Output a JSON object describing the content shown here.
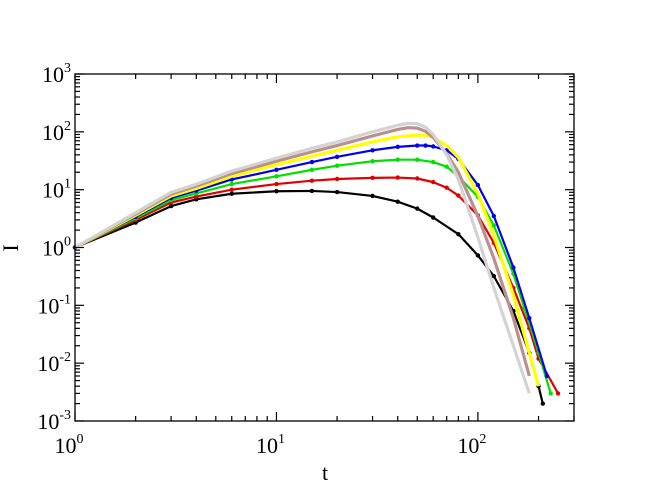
{
  "chart_data": {
    "type": "line",
    "title": "",
    "xlabel": "t",
    "ylabel": "I",
    "x_scale": "log",
    "y_scale": "log",
    "xlim": [
      1,
      300
    ],
    "ylim": [
      0.001,
      1000
    ],
    "grid": false,
    "legend": "none",
    "x_ticks": [
      {
        "value": 1,
        "base": "10",
        "exp": "0"
      },
      {
        "value": 10,
        "base": "10",
        "exp": "1"
      },
      {
        "value": 100,
        "base": "10",
        "exp": "2"
      }
    ],
    "y_ticks": [
      {
        "value": 0.001,
        "base": "10",
        "exp": "-3"
      },
      {
        "value": 0.01,
        "base": "10",
        "exp": "-2"
      },
      {
        "value": 0.1,
        "base": "10",
        "exp": "-1"
      },
      {
        "value": 1,
        "base": "10",
        "exp": "0"
      },
      {
        "value": 10,
        "base": "10",
        "exp": "1"
      },
      {
        "value": 100,
        "base": "10",
        "exp": "2"
      },
      {
        "value": 1000,
        "base": "10",
        "exp": "3"
      }
    ],
    "series": [
      {
        "color": "#000000",
        "marker": "dot",
        "x": [
          1,
          2,
          3,
          4,
          6,
          10,
          15,
          20,
          30,
          40,
          50,
          60,
          80,
          100,
          120,
          150,
          180,
          200,
          210
        ],
        "y": [
          1,
          2.7,
          5.2,
          6.8,
          8.5,
          9.4,
          9.5,
          9.1,
          7.8,
          6.2,
          4.7,
          3.3,
          1.7,
          0.73,
          0.32,
          0.08,
          0.015,
          0.004,
          0.002
        ]
      },
      {
        "color": "#e00000",
        "marker": "dot",
        "x": [
          1,
          2,
          3,
          4,
          6,
          10,
          15,
          20,
          30,
          40,
          50,
          60,
          70,
          80,
          100,
          120,
          150,
          180,
          200,
          250
        ],
        "y": [
          1,
          3.0,
          6.0,
          7.6,
          10,
          12.5,
          14.3,
          15.3,
          16,
          16.2,
          15.6,
          13.5,
          10.8,
          7.9,
          3.6,
          1.2,
          0.2,
          0.04,
          0.012,
          0.003
        ]
      },
      {
        "color": "#00e000",
        "marker": "dot",
        "x": [
          1,
          2,
          3,
          4,
          6,
          10,
          15,
          20,
          30,
          40,
          50,
          60,
          70,
          80,
          100,
          120,
          150,
          170,
          200,
          230
        ],
        "y": [
          1,
          3.2,
          6.6,
          8.6,
          12.5,
          17,
          22,
          26,
          31,
          33,
          33,
          30,
          25,
          17,
          7.5,
          2.4,
          0.35,
          0.09,
          0.015,
          0.003
        ]
      },
      {
        "color": "#0000ee",
        "marker": "dot",
        "x": [
          1,
          2,
          3,
          4,
          6,
          10,
          15,
          20,
          30,
          40,
          50,
          55,
          60,
          70,
          80,
          100,
          120,
          150,
          180,
          220
        ],
        "y": [
          1,
          3.4,
          7.2,
          9.6,
          15,
          22,
          30,
          37,
          48,
          55,
          58,
          58,
          56,
          48,
          34,
          12,
          3.5,
          0.45,
          0.06,
          0.006
        ]
      },
      {
        "color": "#ffff00",
        "marker": "none",
        "x": [
          1,
          2,
          3,
          4,
          6,
          10,
          15,
          20,
          30,
          40,
          50,
          55,
          60,
          70,
          80,
          100,
          120,
          150,
          180,
          200
        ],
        "y": [
          1,
          3.6,
          7.8,
          10.5,
          17,
          27,
          38,
          48,
          67,
          82,
          88,
          87,
          80,
          58,
          36,
          8.5,
          1.6,
          0.15,
          0.015,
          0.004
        ]
      },
      {
        "color": "#bc8f8f",
        "marker": "none",
        "x": [
          1,
          2,
          3,
          4,
          6,
          10,
          15,
          20,
          30,
          40,
          45,
          50,
          55,
          60,
          70,
          80,
          100,
          120,
          150,
          180
        ],
        "y": [
          1,
          3.8,
          8.4,
          11.5,
          19,
          31,
          45,
          58,
          85,
          110,
          118,
          116,
          102,
          80,
          42,
          20,
          3.5,
          0.65,
          0.06,
          0.006
        ]
      },
      {
        "color": "#d3d3d3",
        "marker": "none",
        "x": [
          1,
          2,
          3,
          4,
          6,
          10,
          15,
          20,
          30,
          40,
          45,
          50,
          55,
          60,
          70,
          80,
          100,
          120,
          150,
          180
        ],
        "y": [
          1,
          4.0,
          9.0,
          12.4,
          21,
          35,
          52,
          67,
          100,
          130,
          140,
          138,
          120,
          90,
          40,
          15,
          1.5,
          0.2,
          0.02,
          0.003
        ]
      }
    ]
  }
}
